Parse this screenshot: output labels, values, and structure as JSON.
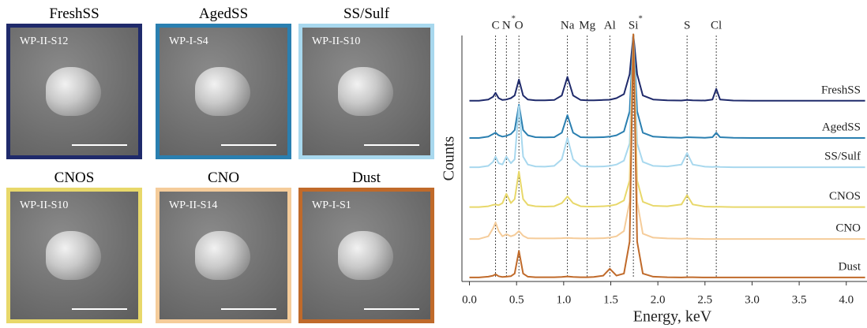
{
  "panels": [
    {
      "title": "FreshSS",
      "label": "WP-II-S12",
      "color": "#1f2a6b"
    },
    {
      "title": "AgedSS",
      "label": "WP-I-S4",
      "color": "#2a7fb0"
    },
    {
      "title": "SS/Sulf",
      "label": "WP-II-S10",
      "color": "#a8d8ee"
    },
    {
      "title": "CNOS",
      "label": "WP-II-S10",
      "color": "#e8d86a"
    },
    {
      "title": "CNO",
      "label": "WP-II-S14",
      "color": "#f5cc9a"
    },
    {
      "title": "Dust",
      "label": "WP-I-S1",
      "color": "#c06a2a"
    }
  ],
  "chart_data": {
    "type": "line",
    "xlabel": "Energy, keV",
    "ylabel": "Counts",
    "xlim": [
      -0.08,
      4.22
    ],
    "ylim": [
      0,
      100
    ],
    "xticks": [
      {
        "value": 0,
        "label": "0.0"
      },
      0.5,
      {
        "value": 1,
        "label": "1.0"
      },
      1.5,
      {
        "value": 2,
        "label": "2.0"
      },
      2.5,
      {
        "value": 3,
        "label": "3.0"
      },
      3.5,
      {
        "value": 4,
        "label": "4.0"
      }
    ],
    "markers": [
      {
        "label": "C",
        "x": 0.277
      },
      {
        "label": "N",
        "x": 0.392,
        "sup": "*"
      },
      {
        "label": "O",
        "x": 0.525
      },
      {
        "label": "Na",
        "x": 1.04
      },
      {
        "label": "Mg",
        "x": 1.25
      },
      {
        "label": "Al",
        "x": 1.49
      },
      {
        "label": "Si",
        "x": 1.74,
        "sup": "*"
      },
      {
        "label": "S",
        "x": 2.31
      },
      {
        "label": "Cl",
        "x": 2.62
      }
    ],
    "x": [
      0,
      0.1,
      0.2,
      0.25,
      0.277,
      0.31,
      0.35,
      0.392,
      0.44,
      0.48,
      0.525,
      0.57,
      0.62,
      0.7,
      0.8,
      0.9,
      0.98,
      1.04,
      1.1,
      1.18,
      1.25,
      1.32,
      1.42,
      1.49,
      1.56,
      1.64,
      1.7,
      1.74,
      1.78,
      1.84,
      1.95,
      2.1,
      2.25,
      2.31,
      2.37,
      2.5,
      2.58,
      2.62,
      2.66,
      2.8,
      3.0,
      3.3,
      3.6,
      3.9,
      4.2
    ],
    "series": [
      {
        "name": "FreshSS",
        "color": "#1f2a6b",
        "values": [
          68,
          68,
          68.5,
          69.5,
          71,
          69,
          68.3,
          68.5,
          69,
          70,
          76,
          70,
          68.5,
          68.2,
          68.2,
          68.3,
          70,
          77,
          70,
          68.3,
          68.2,
          68.2,
          68.3,
          68.4,
          69,
          70.5,
          78,
          93,
          78,
          70,
          68.5,
          68.2,
          68.1,
          68.3,
          68.2,
          68.1,
          68.5,
          72.5,
          68.5,
          68.1,
          68,
          68,
          68,
          68,
          68
        ]
      },
      {
        "name": "AgedSS",
        "color": "#2a7fb0",
        "values": [
          54,
          54,
          54.5,
          55.5,
          56,
          55,
          54.5,
          54.8,
          55.5,
          57,
          66.5,
          57,
          55,
          54.3,
          54.2,
          54.3,
          56,
          62.6,
          56,
          54.3,
          54.2,
          54.2,
          54.3,
          54.5,
          55,
          56.5,
          64,
          93,
          64,
          56,
          54.5,
          54.2,
          54.1,
          54.3,
          54.2,
          54.1,
          54.3,
          56,
          54.3,
          54.1,
          54,
          54,
          54,
          54,
          54
        ]
      },
      {
        "name": "SS/Sulf",
        "color": "#a8d8ee",
        "values": [
          43,
          43,
          43.5,
          45,
          47,
          44.5,
          44,
          47,
          44.5,
          46,
          66,
          47,
          44,
          43.3,
          43.2,
          43.5,
          46,
          54,
          46,
          43.5,
          43.3,
          43.2,
          43.3,
          43.5,
          44,
          45.5,
          52,
          93,
          52,
          45,
          43.5,
          43.3,
          44,
          48.3,
          44,
          43.2,
          43.1,
          43.2,
          43.1,
          43,
          43,
          43,
          43,
          43,
          43
        ]
      },
      {
        "name": "CNOS",
        "color": "#e8d86a",
        "values": [
          28,
          28,
          28.3,
          28.8,
          29,
          28.7,
          29.5,
          33,
          29.5,
          31,
          41.4,
          31,
          28.8,
          28.3,
          28.2,
          28.3,
          29.5,
          32,
          29.5,
          28.3,
          28.2,
          28.2,
          28.3,
          28.5,
          29,
          30.5,
          38,
          93,
          38,
          30,
          28.5,
          28.3,
          29,
          32.5,
          29,
          28.2,
          28.1,
          28.1,
          28.1,
          28,
          28,
          28,
          28,
          28,
          28
        ]
      },
      {
        "name": "CNO",
        "color": "#f5cc9a",
        "values": [
          16,
          16,
          17,
          20,
          22.2,
          19,
          17,
          17.8,
          17,
          17.5,
          19,
          17.2,
          16.3,
          16.2,
          16.2,
          16.2,
          16.3,
          16.4,
          16.3,
          16.2,
          16.2,
          16.2,
          16.3,
          16.5,
          17,
          19,
          30,
          93,
          30,
          18,
          16.5,
          16.2,
          16.1,
          16.2,
          16.1,
          16,
          16,
          16,
          16,
          16,
          16,
          16,
          16,
          16,
          16
        ]
      },
      {
        "name": "Dust",
        "color": "#c06a2a",
        "values": [
          1.5,
          1.5,
          1.8,
          2.2,
          2.7,
          2,
          1.7,
          1.8,
          2,
          3,
          11.5,
          3,
          1.8,
          1.6,
          1.6,
          1.6,
          1.7,
          1.9,
          1.7,
          1.6,
          1.6,
          1.7,
          2.2,
          4.8,
          2.2,
          3,
          15,
          93,
          15,
          3,
          1.8,
          1.6,
          1.5,
          1.6,
          1.6,
          1.5,
          1.5,
          1.5,
          1.5,
          1.5,
          1.5,
          1.5,
          1.5,
          1.5,
          1.5
        ]
      }
    ]
  }
}
